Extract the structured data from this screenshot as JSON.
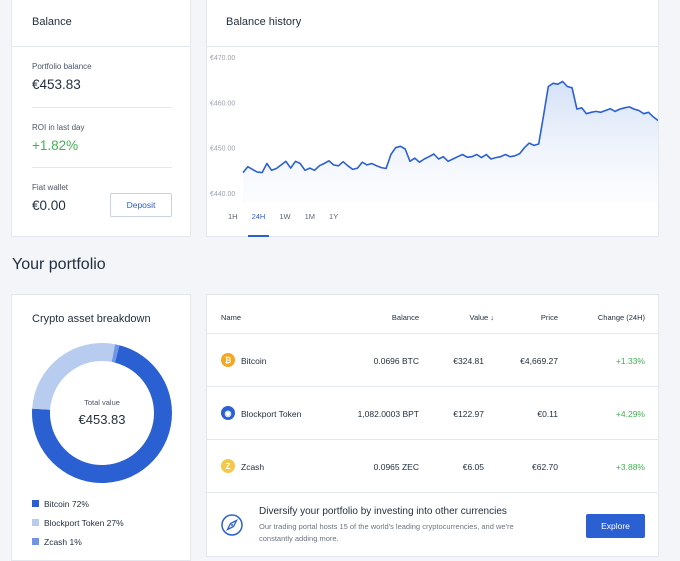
{
  "balance": {
    "title": "Balance",
    "portfolio_label": "Portfolio balance",
    "portfolio_value": "€453.83",
    "roi_label": "ROI in last day",
    "roi_value": "+1.82%",
    "fiat_label": "Fiat wallet",
    "fiat_value": "€0.00",
    "deposit_label": "Deposit"
  },
  "history": {
    "title": "Balance history",
    "tabs": [
      "1H",
      "24H",
      "1W",
      "1M",
      "1Y"
    ],
    "active_tab": "24H",
    "chart_data": {
      "type": "area",
      "ylim": [
        440,
        470
      ],
      "y_ticks": [
        "€470.00",
        "€460.00",
        "€450.00",
        "€440.00"
      ],
      "values": [
        444.5,
        445.8,
        445.2,
        444.6,
        444.5,
        446.5,
        445.0,
        445.4,
        446.2,
        447.0,
        445.5,
        447.0,
        446.5,
        445.0,
        445.5,
        445.0,
        446.0,
        446.5,
        447.1,
        446.2,
        446.0,
        446.9,
        446.0,
        445.2,
        445.5,
        446.8,
        446.2,
        446.5,
        446.0,
        445.6,
        445.4,
        448.5,
        450.0,
        450.3,
        449.7,
        447.0,
        447.7,
        446.8,
        447.5,
        448.0,
        448.6,
        447.5,
        448.0,
        447.0,
        447.5,
        448.0,
        448.5,
        447.9,
        448.0,
        448.5,
        447.8,
        448.5,
        447.5,
        447.8,
        448.0,
        448.5,
        448.0,
        448.2,
        448.7,
        450.0,
        451.0,
        450.5,
        450.8,
        457.0,
        463.5,
        464.2,
        464.0,
        464.6,
        463.5,
        463.2,
        458.5,
        458.8,
        457.5,
        457.8,
        458.0,
        457.8,
        458.2,
        458.6,
        458.0,
        458.5,
        458.8,
        459.0,
        458.5,
        458.2,
        457.5,
        457.8,
        456.8,
        456.0
      ]
    }
  },
  "portfolio_title": "Your portfolio",
  "breakdown": {
    "title": "Crypto asset breakdown",
    "total_label": "Total value",
    "total_value": "€453.83",
    "slices": [
      {
        "name": "Bitcoin",
        "pct": 72,
        "label": "Bitcoin 72%",
        "color": "#2b60d3"
      },
      {
        "name": "Blockport Token",
        "pct": 27,
        "label": "Blockport Token 27%",
        "color": "#b8ccf0"
      },
      {
        "name": "Zcash",
        "pct": 1,
        "label": "Zcash 1%",
        "color": "#6f95e4"
      }
    ]
  },
  "table": {
    "headers": {
      "name": "Name",
      "balance": "Balance",
      "value": "Value ↓",
      "price": "Price",
      "change": "Change (24H)"
    },
    "rows": [
      {
        "icon": "bitcoin-icon",
        "icon_color": "#f5a623",
        "name": "Bitcoin",
        "balance": "0.0696 BTC",
        "value": "€324.81",
        "price": "€4,669.27",
        "change": "+1.33%"
      },
      {
        "icon": "blockport-icon",
        "icon_color": "#2b60d3",
        "name": "Blockport Token",
        "balance": "1,082.0003 BPT",
        "value": "€122.97",
        "price": "€0.11",
        "change": "+4.29%"
      },
      {
        "icon": "zcash-icon",
        "icon_color": "#f4c84b",
        "name": "Zcash",
        "balance": "0.0965 ZEC",
        "value": "€6.05",
        "price": "€62.70",
        "change": "+3.88%"
      }
    ]
  },
  "promo": {
    "title": "Diversify your portfolio by investing into other currencies",
    "text_line1": "Our trading portal hosts 15 of the world's leading cryptocurrencies, and we're",
    "text_line2": "constantly adding more.",
    "explore_label": "Explore"
  }
}
